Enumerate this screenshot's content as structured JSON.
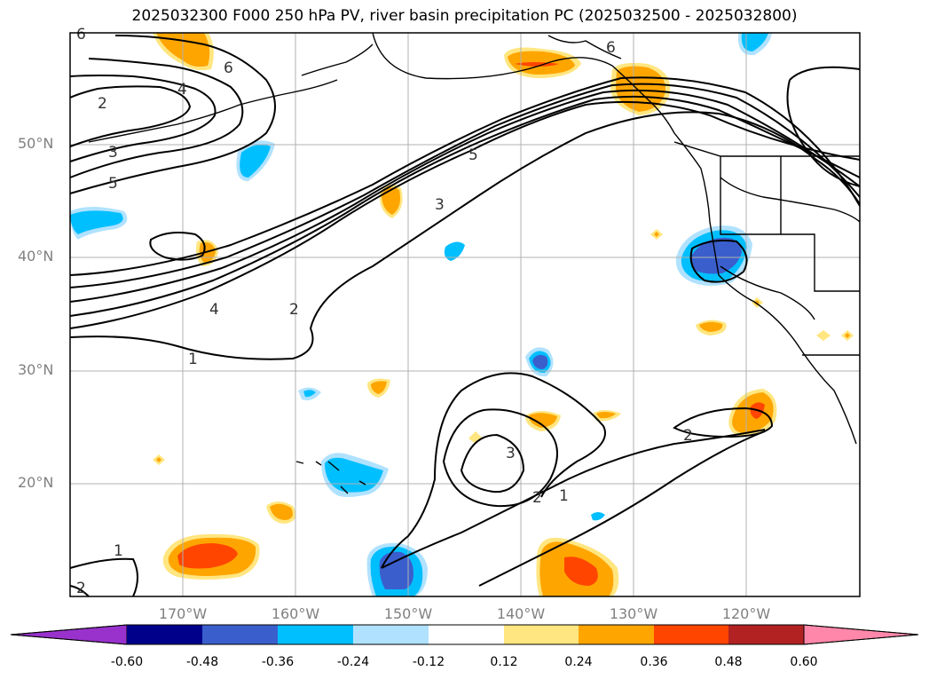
{
  "title": "2025032300 F000 250 hPa PV, river basin precipitation PC (2025032500 - 2025032800)",
  "lat_labels": [
    "50°N",
    "40°N",
    "30°N",
    "20°N"
  ],
  "lon_labels": [
    "170°W",
    "160°W",
    "150°W",
    "140°W",
    "130°W",
    "120°W"
  ],
  "colorbar": {
    "ticks": [
      "-0.60",
      "-0.48",
      "-0.36",
      "-0.24",
      "-0.12",
      "0.12",
      "0.24",
      "0.36",
      "0.48",
      "0.60"
    ],
    "colors": [
      "#9932cc",
      "#00008b",
      "#3a5fcd",
      "#00bfff",
      "#b0e2ff",
      "#ffffff",
      "#ffe680",
      "#ffa500",
      "#ff4500",
      "#b22222",
      "#ff88aa"
    ]
  },
  "contour_labels": [
    "6",
    "6",
    "4",
    "2",
    "3",
    "5",
    "6",
    "5",
    "3",
    "4",
    "2",
    "1",
    "3",
    "2",
    "1",
    "2",
    "1",
    "2"
  ],
  "colors": {
    "positive_fill": "#ffa500",
    "strong_positive_fill": "#ff4500",
    "weak_positive_fill": "#ffe680",
    "negative_fill": "#00bfff",
    "strong_negative_fill": "#3a5fcd",
    "weak_negative_fill": "#b0e2ff",
    "grid": "#b0b0b0",
    "contour": "#000000"
  }
}
